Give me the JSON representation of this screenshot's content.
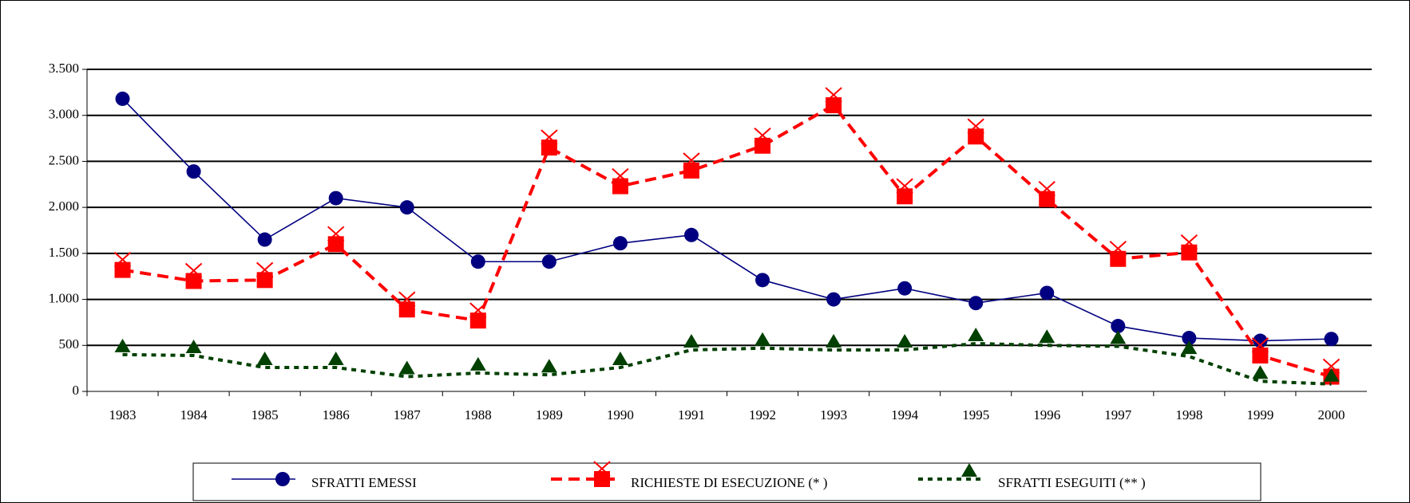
{
  "chart_data": {
    "type": "line",
    "categories": [
      "1983",
      "1984",
      "1985",
      "1986",
      "1987",
      "1988",
      "1989",
      "1990",
      "1991",
      "1992",
      "1993",
      "1994",
      "1995",
      "1996",
      "1997",
      "1998",
      "1999",
      "2000"
    ],
    "series": [
      {
        "name": "SFRATTI EMESSI",
        "color": "#000080",
        "marker": "circle",
        "dash": "solid",
        "values": [
          3180,
          2390,
          1650,
          2100,
          2000,
          1410,
          1410,
          1610,
          1700,
          1210,
          1000,
          1120,
          960,
          1070,
          710,
          580,
          550,
          570
        ]
      },
      {
        "name": "RICHIESTE DI ESECUZIONE  (* )",
        "color": "#ff0000",
        "marker": "square",
        "dash": "dashed",
        "values": [
          1320,
          1200,
          1210,
          1600,
          890,
          770,
          2650,
          2230,
          2400,
          2670,
          3110,
          2120,
          2770,
          2090,
          1440,
          1510,
          390,
          160
        ]
      },
      {
        "name": "SFRATTI ESEGUITI (** )",
        "color": "#004000",
        "marker": "triangle",
        "dash": "dotted",
        "values": [
          400,
          390,
          260,
          260,
          160,
          200,
          180,
          260,
          450,
          470,
          450,
          450,
          520,
          500,
          490,
          380,
          110,
          80
        ]
      }
    ],
    "ylim": [
      0,
      3500
    ],
    "yticks": [
      0,
      500,
      {
        "value": 1000,
        "label": "1.000"
      },
      {
        "value": 1500,
        "label": "1.500"
      },
      {
        "value": 2000,
        "label": "2.000"
      },
      {
        "value": 2500,
        "label": "2.500"
      },
      {
        "value": 3000,
        "label": "3.000"
      },
      {
        "value": 3500,
        "label": "3.500"
      }
    ],
    "grid": true,
    "legend": "bottom"
  }
}
